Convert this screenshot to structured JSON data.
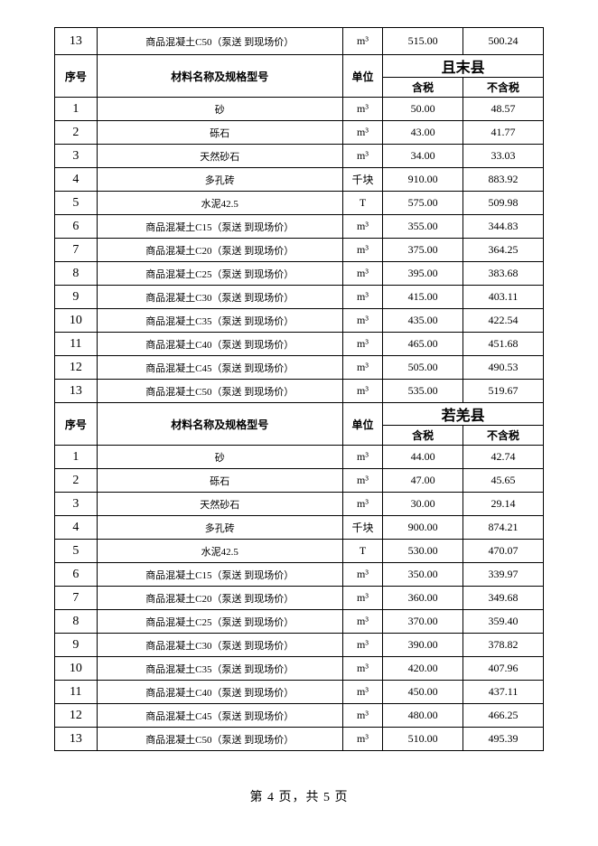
{
  "footer": "第 4 页，共 5 页",
  "unit_m3": "m³",
  "unit_qk": "千块",
  "unit_t": "T",
  "headers": {
    "idx": "序号",
    "name": "材料名称及规格型号",
    "unit": "单位",
    "tax": "含税",
    "notax": "不含税"
  },
  "toprow": {
    "idx": "13",
    "name": "商品混凝土C50（泵送 到现场价）",
    "unit": "m³",
    "tax": "515.00",
    "notax": "500.24"
  },
  "section1": {
    "region": "且末县",
    "rows": [
      {
        "idx": "1",
        "name": "砂",
        "unit": "m³",
        "tax": "50.00",
        "notax": "48.57"
      },
      {
        "idx": "2",
        "name": "砾石",
        "unit": "m³",
        "tax": "43.00",
        "notax": "41.77"
      },
      {
        "idx": "3",
        "name": "天然砂石",
        "unit": "m³",
        "tax": "34.00",
        "notax": "33.03"
      },
      {
        "idx": "4",
        "name": "多孔砖",
        "unit": "千块",
        "tax": "910.00",
        "notax": "883.92"
      },
      {
        "idx": "5",
        "name": "水泥42.5",
        "unit": "T",
        "tax": "575.00",
        "notax": "509.98"
      },
      {
        "idx": "6",
        "name": "商品混凝土C15（泵送 到现场价）",
        "unit": "m³",
        "tax": "355.00",
        "notax": "344.83"
      },
      {
        "idx": "7",
        "name": "商品混凝土C20（泵送 到现场价）",
        "unit": "m³",
        "tax": "375.00",
        "notax": "364.25"
      },
      {
        "idx": "8",
        "name": "商品混凝土C25（泵送 到现场价）",
        "unit": "m³",
        "tax": "395.00",
        "notax": "383.68"
      },
      {
        "idx": "9",
        "name": "商品混凝土C30（泵送 到现场价）",
        "unit": "m³",
        "tax": "415.00",
        "notax": "403.11"
      },
      {
        "idx": "10",
        "name": "商品混凝土C35（泵送 到现场价）",
        "unit": "m³",
        "tax": "435.00",
        "notax": "422.54"
      },
      {
        "idx": "11",
        "name": "商品混凝土C40（泵送 到现场价）",
        "unit": "m³",
        "tax": "465.00",
        "notax": "451.68"
      },
      {
        "idx": "12",
        "name": "商品混凝土C45（泵送 到现场价）",
        "unit": "m³",
        "tax": "505.00",
        "notax": "490.53"
      },
      {
        "idx": "13",
        "name": "商品混凝土C50（泵送 到现场价）",
        "unit": "m³",
        "tax": "535.00",
        "notax": "519.67"
      }
    ]
  },
  "section2": {
    "region": "若羌县",
    "rows": [
      {
        "idx": "1",
        "name": "砂",
        "unit": "m³",
        "tax": "44.00",
        "notax": "42.74"
      },
      {
        "idx": "2",
        "name": "砾石",
        "unit": "m³",
        "tax": "47.00",
        "notax": "45.65"
      },
      {
        "idx": "3",
        "name": "天然砂石",
        "unit": "m³",
        "tax": "30.00",
        "notax": "29.14"
      },
      {
        "idx": "4",
        "name": "多孔砖",
        "unit": "千块",
        "tax": "900.00",
        "notax": "874.21"
      },
      {
        "idx": "5",
        "name": "水泥42.5",
        "unit": "T",
        "tax": "530.00",
        "notax": "470.07"
      },
      {
        "idx": "6",
        "name": "商品混凝土C15（泵送 到现场价）",
        "unit": "m³",
        "tax": "350.00",
        "notax": "339.97"
      },
      {
        "idx": "7",
        "name": "商品混凝土C20（泵送 到现场价）",
        "unit": "m³",
        "tax": "360.00",
        "notax": "349.68"
      },
      {
        "idx": "8",
        "name": "商品混凝土C25（泵送 到现场价）",
        "unit": "m³",
        "tax": "370.00",
        "notax": "359.40"
      },
      {
        "idx": "9",
        "name": "商品混凝土C30（泵送 到现场价）",
        "unit": "m³",
        "tax": "390.00",
        "notax": "378.82"
      },
      {
        "idx": "10",
        "name": "商品混凝土C35（泵送 到现场价）",
        "unit": "m³",
        "tax": "420.00",
        "notax": "407.96"
      },
      {
        "idx": "11",
        "name": "商品混凝土C40（泵送 到现场价）",
        "unit": "m³",
        "tax": "450.00",
        "notax": "437.11"
      },
      {
        "idx": "12",
        "name": "商品混凝土C45（泵送 到现场价）",
        "unit": "m³",
        "tax": "480.00",
        "notax": "466.25"
      },
      {
        "idx": "13",
        "name": "商品混凝土C50（泵送 到现场价）",
        "unit": "m³",
        "tax": "510.00",
        "notax": "495.39"
      }
    ]
  }
}
